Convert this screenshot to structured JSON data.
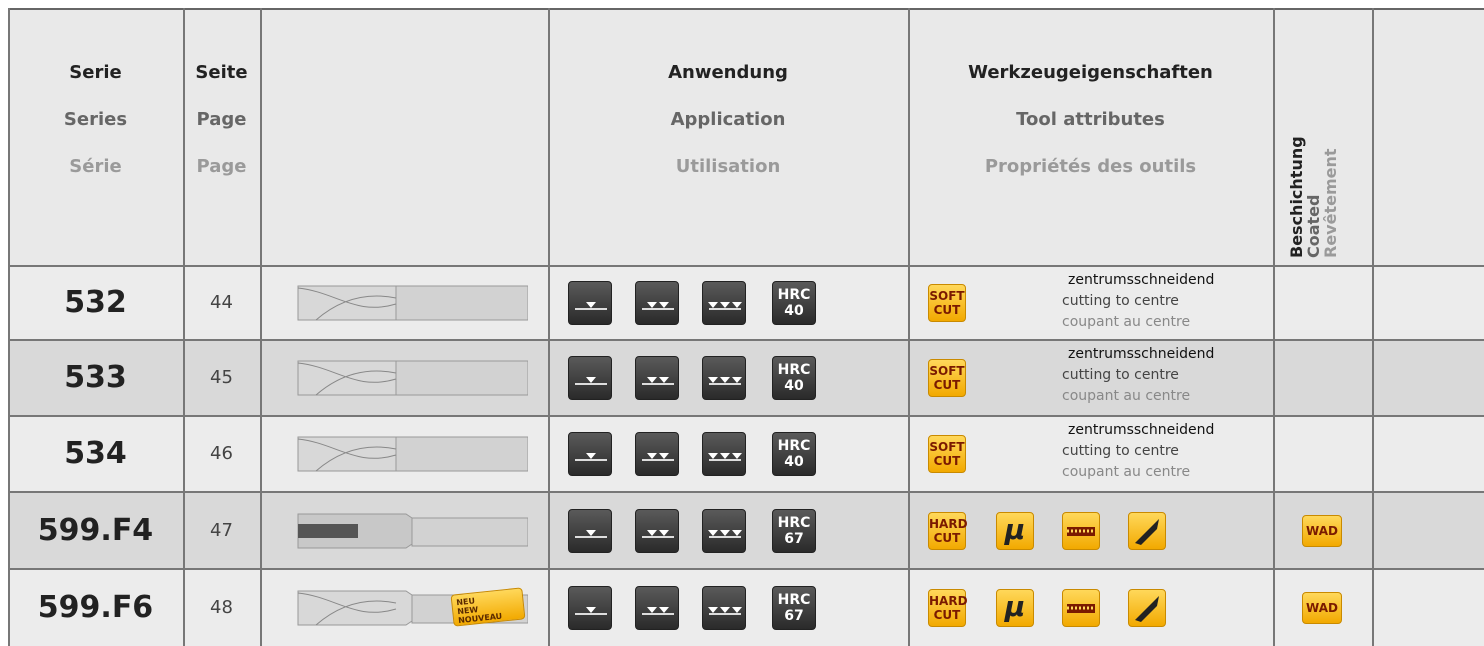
{
  "header": {
    "series": [
      "Serie",
      "Series",
      "Série"
    ],
    "page": [
      "Seite",
      "Page",
      "Page"
    ],
    "application": [
      "Anwendung",
      "Application",
      "Utilisation"
    ],
    "attributes": [
      "Werkzeugeigenschaften",
      "Tool attributes",
      "Propriétés des outils"
    ],
    "coating": [
      "Beschichtung",
      "Coated",
      "Revêtement"
    ]
  },
  "rows": [
    {
      "series": "532",
      "page": "44",
      "hrc": [
        "HRC",
        "40"
      ],
      "cut": [
        "SOFT",
        "CUT"
      ],
      "notes": [
        "zentrumsschneidend",
        "cutting to centre",
        "coupant au centre"
      ]
    },
    {
      "series": "533",
      "page": "45",
      "hrc": [
        "HRC",
        "40"
      ],
      "cut": [
        "SOFT",
        "CUT"
      ],
      "notes": [
        "zentrumsschneidend",
        "cutting to centre",
        "coupant au centre"
      ]
    },
    {
      "series": "534",
      "page": "46",
      "hrc": [
        "HRC",
        "40"
      ],
      "cut": [
        "SOFT",
        "CUT"
      ],
      "notes": [
        "zentrumsschneidend",
        "cutting to centre",
        "coupant au centre"
      ]
    },
    {
      "series": "599.F4",
      "page": "47",
      "hrc": [
        "HRC",
        "67"
      ],
      "cut": [
        "HARD",
        "CUT"
      ],
      "mu": "μ",
      "coating": "WAD"
    },
    {
      "series": "599.F6",
      "page": "48",
      "badge": [
        "NEU",
        "NEW",
        "NOUVEAU"
      ],
      "hrc": [
        "HRC",
        "67"
      ],
      "cut": [
        "HARD",
        "CUT"
      ],
      "mu": "μ",
      "coating": "WAD"
    }
  ]
}
